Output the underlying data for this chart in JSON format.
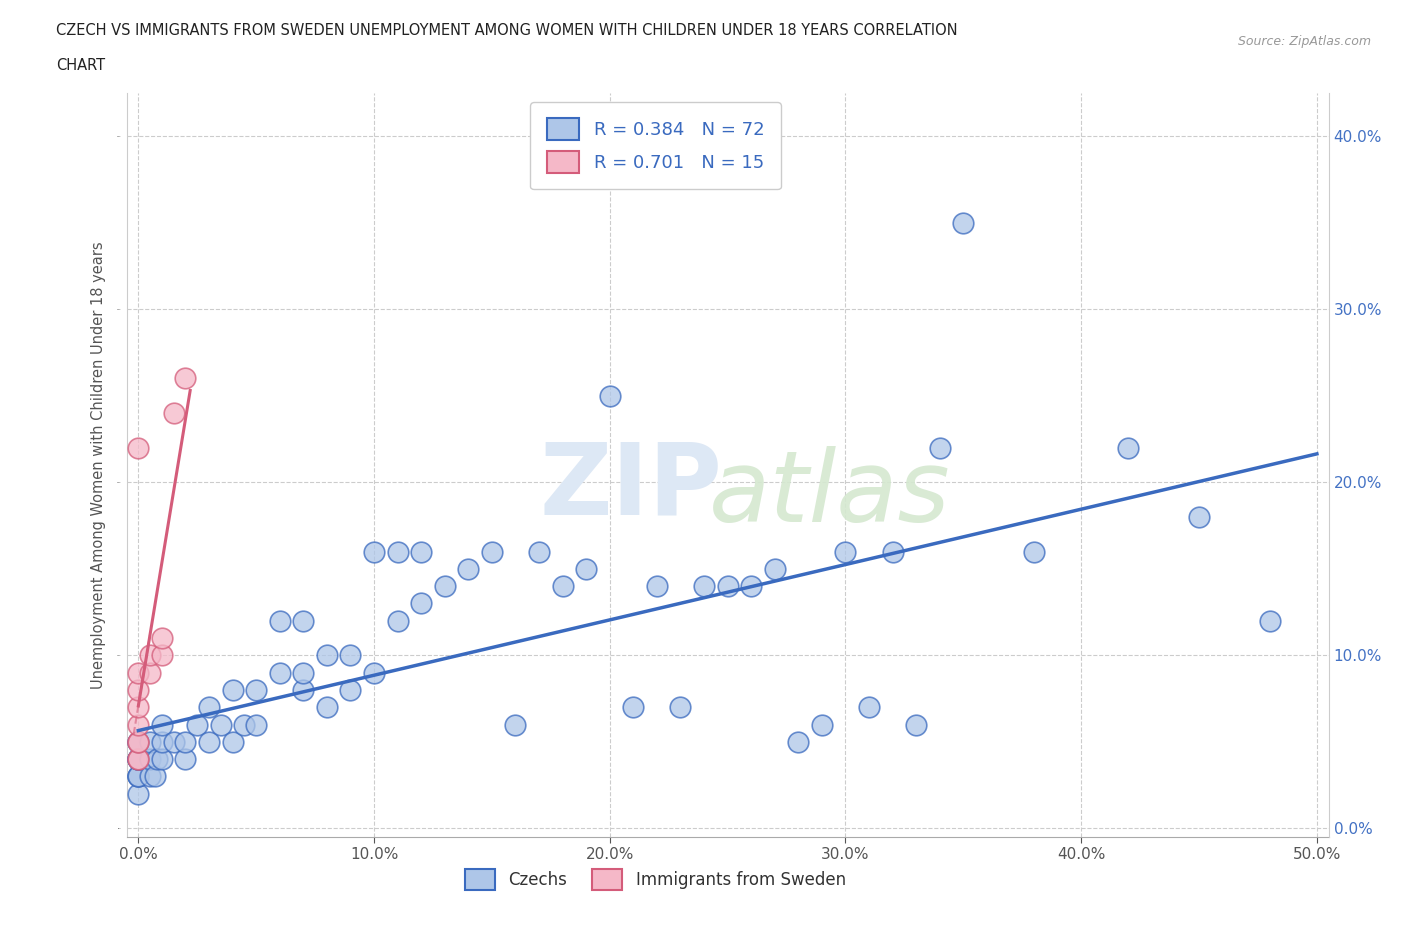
{
  "title_line1": "CZECH VS IMMIGRANTS FROM SWEDEN UNEMPLOYMENT AMONG WOMEN WITH CHILDREN UNDER 18 YEARS CORRELATION",
  "title_line2": "CHART",
  "source_text": "Source: ZipAtlas.com",
  "ylabel": "Unemployment Among Women with Children Under 18 years",
  "czechs_R": 0.384,
  "czechs_N": 72,
  "sweden_R": 0.701,
  "sweden_N": 15,
  "czechs_color": "#aec6e8",
  "sweden_color": "#f5b8c8",
  "trend_blue": "#3a6abf",
  "trend_pink": "#d45c7a",
  "xlim": [
    -0.005,
    0.505
  ],
  "ylim": [
    -0.005,
    0.425
  ],
  "xticks": [
    0.0,
    0.1,
    0.2,
    0.3,
    0.4,
    0.5
  ],
  "yticks": [
    0.0,
    0.1,
    0.2,
    0.3,
    0.4
  ],
  "czechs_x": [
    0.0,
    0.0,
    0.0,
    0.0,
    0.0,
    0.0,
    0.0,
    0.0,
    0.0,
    0.0,
    0.005,
    0.005,
    0.005,
    0.007,
    0.008,
    0.01,
    0.01,
    0.01,
    0.015,
    0.02,
    0.02,
    0.025,
    0.03,
    0.03,
    0.035,
    0.04,
    0.04,
    0.045,
    0.05,
    0.05,
    0.06,
    0.06,
    0.07,
    0.07,
    0.07,
    0.08,
    0.08,
    0.09,
    0.09,
    0.1,
    0.1,
    0.11,
    0.11,
    0.12,
    0.12,
    0.13,
    0.14,
    0.15,
    0.16,
    0.17,
    0.18,
    0.19,
    0.2,
    0.21,
    0.22,
    0.23,
    0.24,
    0.25,
    0.26,
    0.27,
    0.28,
    0.29,
    0.3,
    0.31,
    0.32,
    0.33,
    0.34,
    0.35,
    0.38,
    0.42,
    0.45,
    0.48
  ],
  "czechs_y": [
    0.02,
    0.03,
    0.03,
    0.03,
    0.04,
    0.04,
    0.04,
    0.04,
    0.05,
    0.05,
    0.03,
    0.04,
    0.05,
    0.03,
    0.04,
    0.04,
    0.05,
    0.06,
    0.05,
    0.04,
    0.05,
    0.06,
    0.05,
    0.07,
    0.06,
    0.05,
    0.08,
    0.06,
    0.06,
    0.08,
    0.09,
    0.12,
    0.08,
    0.09,
    0.12,
    0.07,
    0.1,
    0.08,
    0.1,
    0.09,
    0.16,
    0.12,
    0.16,
    0.13,
    0.16,
    0.14,
    0.15,
    0.16,
    0.06,
    0.16,
    0.14,
    0.15,
    0.25,
    0.07,
    0.14,
    0.07,
    0.14,
    0.14,
    0.14,
    0.15,
    0.05,
    0.06,
    0.16,
    0.07,
    0.16,
    0.06,
    0.22,
    0.35,
    0.16,
    0.22,
    0.18,
    0.12
  ],
  "sweden_x": [
    0.0,
    0.0,
    0.0,
    0.0,
    0.0,
    0.0,
    0.0,
    0.0,
    0.0,
    0.005,
    0.005,
    0.01,
    0.01,
    0.015,
    0.02
  ],
  "sweden_y": [
    0.04,
    0.04,
    0.05,
    0.05,
    0.06,
    0.07,
    0.08,
    0.09,
    0.22,
    0.09,
    0.1,
    0.1,
    0.11,
    0.24,
    0.26
  ]
}
